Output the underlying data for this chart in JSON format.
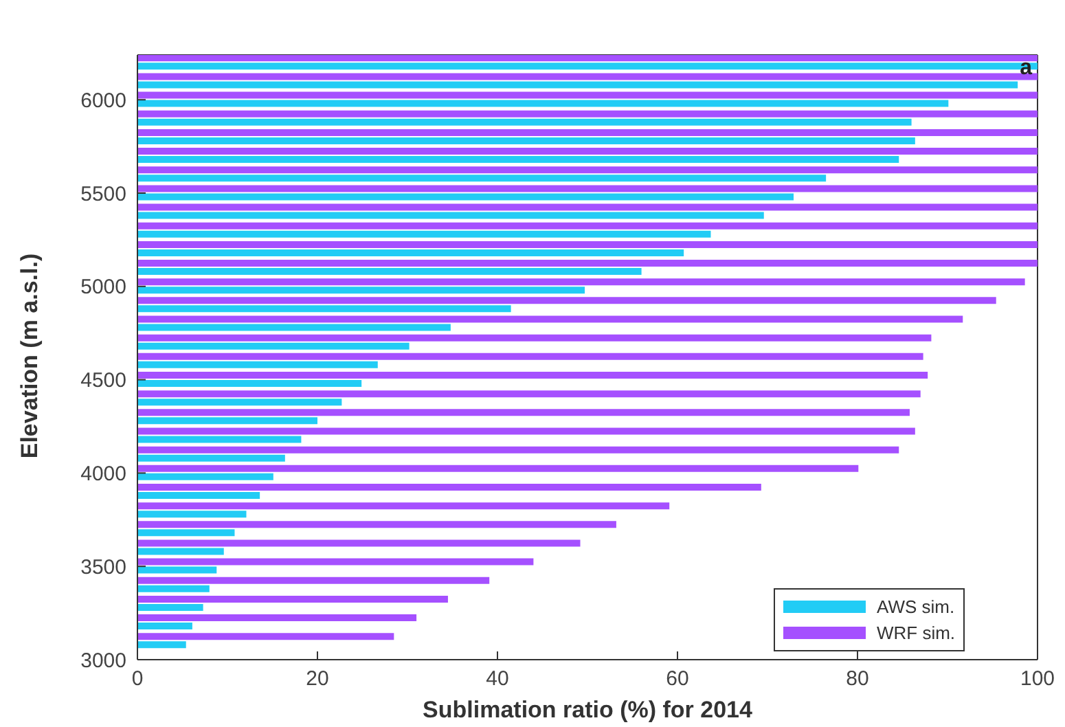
{
  "chart_data": {
    "type": "bar",
    "orientation": "horizontal",
    "xlabel": "Sublimation ratio (%) for 2014",
    "ylabel": "Elevation (m a.s.l.)",
    "annotations": [
      "a"
    ],
    "x": [
      3100,
      3200,
      3300,
      3400,
      3500,
      3600,
      3700,
      3800,
      3900,
      4000,
      4100,
      4200,
      4300,
      4400,
      4500,
      4600,
      4700,
      4800,
      4900,
      5000,
      5100,
      5200,
      5300,
      5400,
      5500,
      5600,
      5700,
      5800,
      5900,
      6000,
      6100,
      6200
    ],
    "series": [
      {
        "name": "AWS sim.",
        "color": "#22ccf5",
        "values": [
          5.4,
          6.1,
          7.3,
          8.0,
          8.8,
          9.6,
          10.8,
          12.1,
          13.6,
          15.1,
          16.4,
          18.2,
          20.0,
          22.7,
          24.9,
          26.7,
          30.2,
          34.8,
          41.5,
          49.7,
          56.0,
          60.7,
          63.7,
          69.6,
          72.9,
          76.5,
          84.6,
          86.4,
          86.0,
          90.1,
          97.8,
          100
        ]
      },
      {
        "name": "WRF sim.",
        "color": "#a550ff",
        "values": [
          28.5,
          31.0,
          34.5,
          39.1,
          44.0,
          49.2,
          53.2,
          59.1,
          69.3,
          80.1,
          84.6,
          86.4,
          85.8,
          87.0,
          87.8,
          87.3,
          88.2,
          91.7,
          95.4,
          98.6,
          100,
          100,
          100,
          100,
          100,
          100,
          100,
          100,
          100,
          100,
          100,
          100
        ]
      }
    ],
    "xlim": [
      0,
      100
    ],
    "xticks": [
      0,
      20,
      40,
      60,
      80,
      100
    ],
    "ylim": [
      3000,
      6240
    ],
    "yticks": [
      3000,
      3500,
      4000,
      4500,
      5000,
      5500,
      6000
    ],
    "grid": false,
    "legend": "bottom right"
  }
}
